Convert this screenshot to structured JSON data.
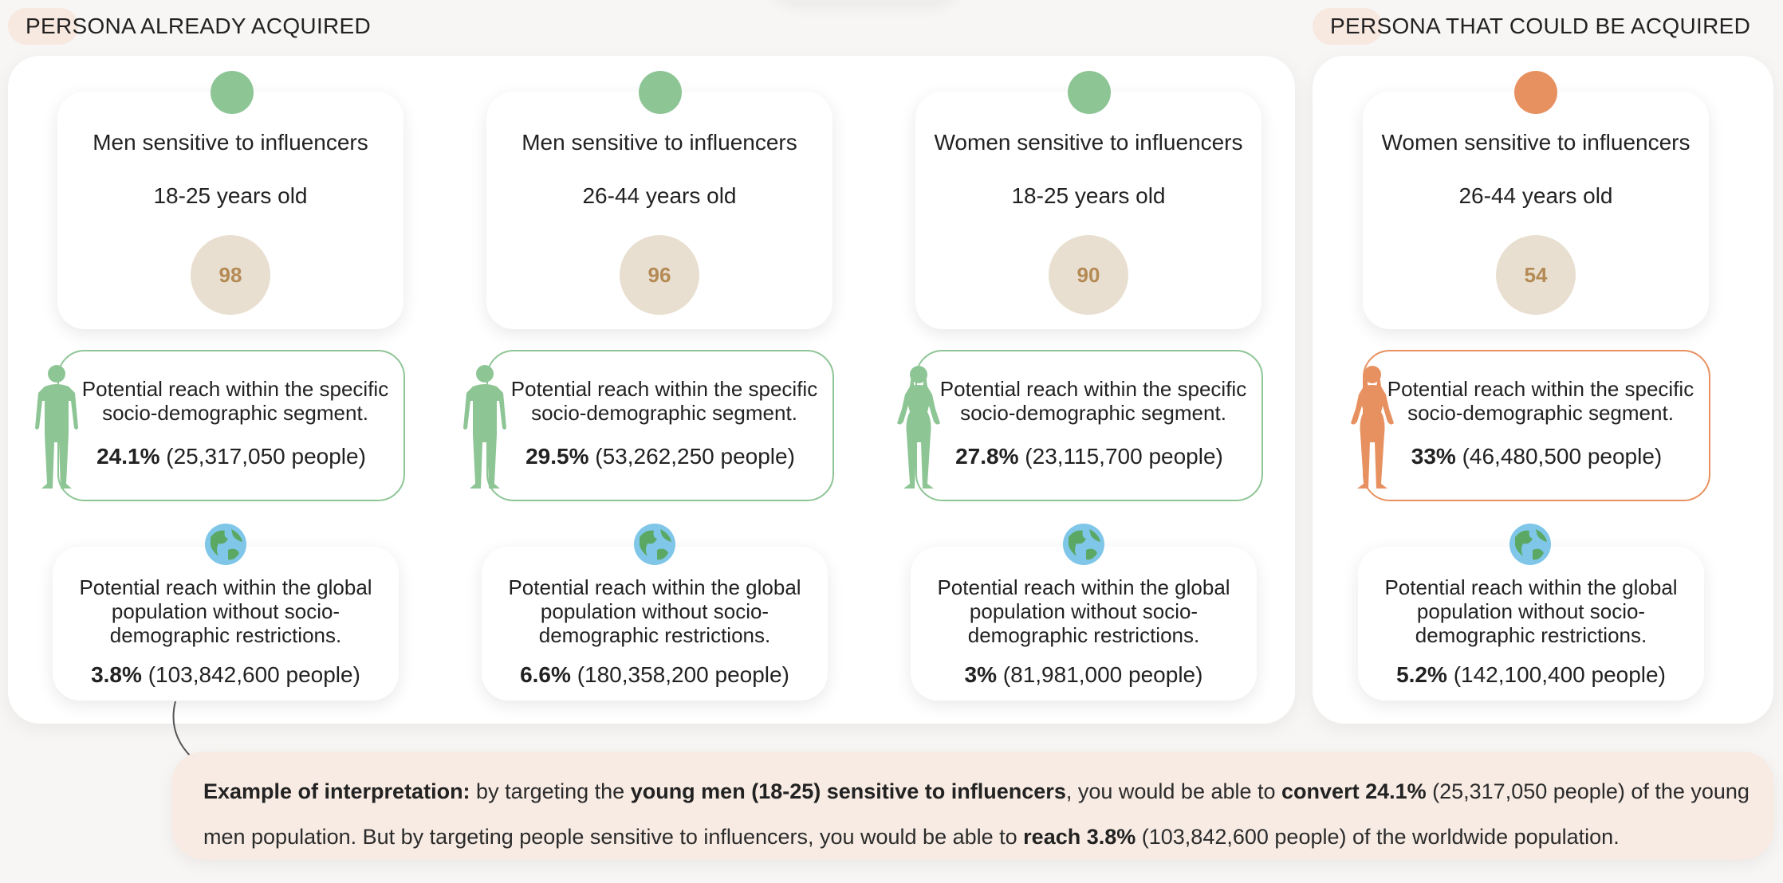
{
  "sections": {
    "acquired_label": "PERSONA ALREADY ACQUIRED",
    "potential_label": "PERSONA THAT COULD BE ACQUIRED"
  },
  "colors": {
    "acquired_accent": "#8ec595",
    "potential_accent": "#e89160",
    "score_bg": "#e9dfd0",
    "score_text": "#b48a55",
    "example_bg": "#f7ebe3"
  },
  "personas": [
    {
      "title": "Men sensitive to influencers",
      "age": "18-25 years old",
      "score": "98",
      "figure_icon": "man-silhouette-icon",
      "segment_desc": "Potential reach within the specific socio-demographic segment.",
      "segment_pct": "24.1%",
      "segment_people": "(25,317,050 people)",
      "global_desc": "Potential reach within the global population without socio-demographic restrictions.",
      "global_pct": "3.8%",
      "global_people": "(103,842,600 people)"
    },
    {
      "title": "Men sensitive to influencers",
      "age": "26-44 years old",
      "score": "96",
      "figure_icon": "man-silhouette-icon",
      "segment_desc": "Potential reach within the specific socio-demographic segment.",
      "segment_pct": "29.5%",
      "segment_people": "(53,262,250 people)",
      "global_desc": "Potential reach within the global population without socio-demographic restrictions.",
      "global_pct": "6.6%",
      "global_people": "(180,358,200 people)"
    },
    {
      "title": "Women sensitive to influencers",
      "age": "18-25 years old",
      "score": "90",
      "figure_icon": "woman-silhouette-icon",
      "segment_desc": "Potential reach within the specific socio-demographic segment.",
      "segment_pct": "27.8%",
      "segment_people": "(23,115,700 people)",
      "global_desc": "Potential reach within the global population without socio-demographic restrictions.",
      "global_pct": "3%",
      "global_people": "(81,981,000 people)"
    },
    {
      "title": "Women sensitive to influencers",
      "age": "26-44 years old",
      "score": "54",
      "figure_icon": "woman-silhouette-icon",
      "segment_desc": "Potential reach within the specific socio-demographic segment.",
      "segment_pct": "33%",
      "segment_people": "(46,480,500 people)",
      "global_desc": "Potential reach within the global population without socio-demographic restrictions.",
      "global_pct": "5.2%",
      "global_people": "(142,100,400 people)"
    }
  ],
  "example": {
    "label": "Example of interpretation:",
    "t1": " by targeting the ",
    "b1": "young men (18-25) sensitive to influencers",
    "t2": ", you would be able to ",
    "b2": "convert 24.1%",
    "t3": " (25,317,050 people) of the young men population. But by targeting people sensitive to influencers, you would be able to ",
    "b3": "reach 3.8%",
    "t4": " (103,842,600 people) of the worldwide population."
  }
}
